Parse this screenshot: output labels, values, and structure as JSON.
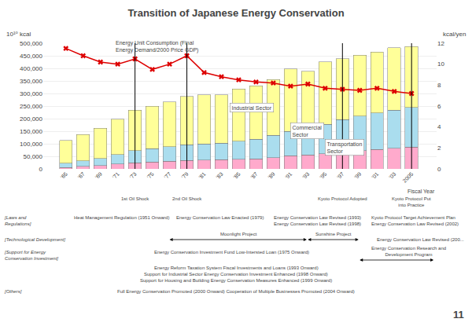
{
  "chart_data": {
    "type": "bar",
    "stacked": true,
    "title": "Transition of Japanese Energy Conservation",
    "categories": [
      "'65",
      "'67",
      "'69",
      "'71",
      "'73",
      "'75",
      "'77",
      "'79",
      "'81",
      "'83",
      "'85",
      "'87",
      "'89",
      "'91",
      "'93",
      "'95",
      "'97",
      "'99",
      "'01",
      "'03",
      "2005"
    ],
    "xlabel": "Fiscal Year",
    "ylabel": "10¹⁰ kcal",
    "y2label": "kcal/yen",
    "ylim": [
      0,
      500000
    ],
    "yticks": [
      0,
      {
        "value": 50000,
        "label": "50,000"
      },
      {
        "value": 100000,
        "label": "100,000"
      },
      {
        "value": 150000,
        "label": "150,000"
      },
      {
        "value": 200000,
        "label": "200,000"
      },
      {
        "value": 250000,
        "label": "250,000"
      },
      {
        "value": 300000,
        "label": "300,000"
      },
      {
        "value": 350000,
        "label": "350,000"
      },
      {
        "value": 400000,
        "label": "400,000"
      },
      {
        "value": 450000,
        "label": "450,000"
      },
      {
        "value": 500000,
        "label": "500,000"
      }
    ],
    "y2lim": [
      0,
      12
    ],
    "y2ticks": [
      0,
      2,
      4,
      6,
      8,
      10,
      12
    ],
    "grid": true,
    "series": [
      {
        "color": "#FFAACC",
        "values": [
          5000,
          10000,
          14000,
          19000,
          25000,
          28000,
          31000,
          34000,
          35000,
          36000,
          38000,
          40000,
          45000,
          52000,
          55000,
          60000,
          66000,
          72000,
          78000,
          82000,
          86000
        ]
      },
      {
        "color": "#AADDEE",
        "values": [
          18000,
          22000,
          28000,
          38000,
          48000,
          52000,
          57000,
          62000,
          65000,
          67000,
          72000,
          78000,
          88000,
          98000,
          102000,
          118000,
          130000,
          138000,
          145000,
          152000,
          158000
        ]
      },
      {
        "color": "#FFFF99",
        "values": [
          90000,
          105000,
          120000,
          140000,
          160000,
          170000,
          178000,
          192000,
          195000,
          192000,
          208000,
          212000,
          222000,
          248000,
          232000,
          248000,
          242000,
          242000,
          242000,
          248000,
          242000
        ]
      },
      {
        "type": "line",
        "axis": "y2",
        "color": "#DD0000",
        "marker": "x",
        "values": [
          11.5,
          10.8,
          10.2,
          10.0,
          10.5,
          9.5,
          10.0,
          10.8,
          9.2,
          8.8,
          8.5,
          8.3,
          8.2,
          7.9,
          8.1,
          7.7,
          7.6,
          7.5,
          7.7,
          7.4,
          7.2
        ]
      }
    ],
    "sector_labels": [
      "Industrial Sector",
      "Commercial\nSector",
      "Transportation\nSector"
    ],
    "line_label": "Energy Unit Consumption (Final\nEnergy Demand/2000 Price GDP)",
    "events": [
      {
        "category": "'73",
        "label": "1st Oil Shock"
      },
      {
        "category": "'79",
        "label": "2nd Oil Shock"
      },
      {
        "category": "'97",
        "label": "Kyoto Protocol Adopted"
      },
      {
        "category": "2005",
        "label": "Kyoto Protocol Put\ninto Practice"
      }
    ],
    "timeline": [
      {
        "label": "[Laws and\nRegulations]",
        "items": [
          {
            "text": "Heat Management Regulation (1951 Onward)"
          },
          {
            "text": "Energy Conservation Law Enacted (1979)"
          },
          {
            "text": "Energy Conservation Law Revised (1993)"
          },
          {
            "text": "Energy Conservation Law Revised (1998)"
          },
          {
            "text": "Kyoto Protocol Target Achievement Plan"
          },
          {
            "text": "Energy Conservation Law Revised (2002)"
          }
        ]
      },
      {
        "label": "[Technological Development]",
        "items": [
          {
            "text": "Moonlight Project",
            "from": "'77",
            "to": "'93"
          },
          {
            "text": "Sunshine Project",
            "from": "'93",
            "to": "'99"
          },
          {
            "text": "Energy Conservation Law Revised (200..."
          }
        ]
      },
      {
        "label": "[Support for Energy\nConservation Investment]",
        "items": [
          {
            "text": "Energy Conservation Investment Fund Low-Intersted Loan (1975 Onward)",
            "from": "'75"
          },
          {
            "text": "Energy Conservation Research and\nDevelopment Program",
            "from": "'99"
          },
          {
            "text": "Energy Reform Taxation System Fiscal Investments and Loans (1993 Onward)"
          },
          {
            "text": "Support for Industrial Sector Energy Conservation Investment Enhanced (1998 Onward)"
          },
          {
            "text": "Support for Housing and Building Energy Conservation Measures Enhanced (1999 Onward)"
          }
        ]
      },
      {
        "label": "[Others]",
        "items": [
          {
            "text": "Full Energy Conservation Promoted (2000 Onward) Cooperation of Multiple Businesses Promoted (2004 Onward)"
          }
        ]
      }
    ],
    "page_number": "11"
  }
}
